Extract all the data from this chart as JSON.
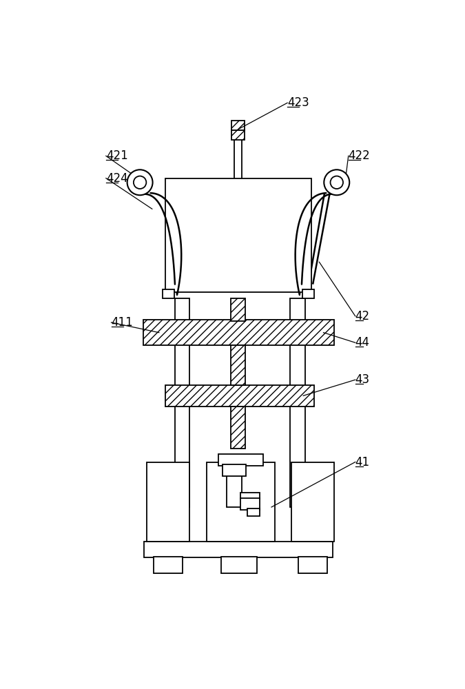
{
  "bg_color": "#ffffff",
  "line_color": "#000000",
  "fig_width": 6.75,
  "fig_height": 10.0
}
